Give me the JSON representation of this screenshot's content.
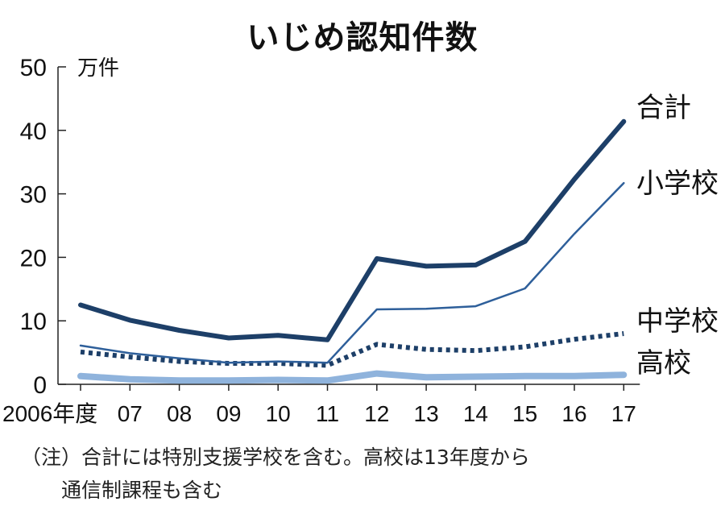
{
  "title": "いじめ認知件数",
  "note_line1": "（注）合計には特別支援学校を含む。高校は13年度から",
  "note_line2": "通信制課程も含む",
  "chart_data": {
    "type": "line",
    "title": "いじめ認知件数",
    "ylabel": "万件",
    "ylim": [
      0,
      50
    ],
    "yticks": [
      0,
      10,
      20,
      30,
      40,
      50
    ],
    "categories": [
      "2006年度",
      "07",
      "08",
      "09",
      "10",
      "11",
      "12",
      "13",
      "14",
      "15",
      "16",
      "17"
    ],
    "grid": false,
    "legend": "direct labels at right end of lines",
    "series": [
      {
        "name": "合計",
        "color": "#1d3f68",
        "style": "thick",
        "values": [
          12.5,
          10.1,
          8.5,
          7.3,
          7.7,
          7.0,
          19.8,
          18.6,
          18.8,
          22.5,
          32.3,
          41.4
        ]
      },
      {
        "name": "小学校",
        "color": "#2e5f9a",
        "style": "thin",
        "values": [
          6.1,
          4.9,
          4.1,
          3.4,
          3.6,
          3.4,
          11.8,
          11.9,
          12.3,
          15.1,
          23.7,
          31.7
        ]
      },
      {
        "name": "中学校",
        "color": "#1d3f68",
        "style": "dotted",
        "values": [
          5.1,
          4.3,
          3.6,
          3.3,
          3.3,
          3.0,
          6.3,
          5.5,
          5.3,
          5.9,
          7.1,
          8.0
        ]
      },
      {
        "name": "高校",
        "color": "#8fb3dc",
        "style": "thick-light",
        "values": [
          1.3,
          0.8,
          0.6,
          0.6,
          0.7,
          0.6,
          1.7,
          1.1,
          1.2,
          1.3,
          1.3,
          1.5
        ]
      }
    ]
  }
}
